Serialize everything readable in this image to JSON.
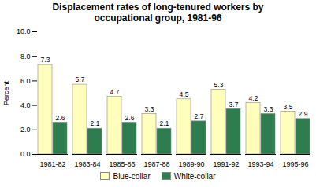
{
  "chart_data": {
    "type": "bar",
    "title": "Displacement rates of long-tenured workers by\noccupational group, 1981-96",
    "ylabel": "Percent",
    "categories": [
      "1981-82",
      "1983-84",
      "1985-86",
      "1987-88",
      "1989-90",
      "1991-92",
      "1993-94",
      "1995-96"
    ],
    "series": [
      {
        "name": "Blue-collar",
        "color": "#ffffbb",
        "values": [
          7.3,
          5.7,
          4.7,
          3.3,
          4.5,
          5.3,
          4.2,
          3.5
        ]
      },
      {
        "name": "White-collar",
        "color": "#2e7d4f",
        "values": [
          2.6,
          2.1,
          2.6,
          2.1,
          2.7,
          3.7,
          3.3,
          2.9
        ]
      }
    ],
    "ylim": [
      0.0,
      10.0
    ],
    "yticks": [
      {
        "value": 0,
        "label": "0.0"
      },
      {
        "value": 2,
        "label": "2.0"
      },
      {
        "value": 4,
        "label": "4.0"
      },
      {
        "value": 6,
        "label": "6.0"
      },
      {
        "value": 8,
        "label": "8.0"
      },
      {
        "value": 10,
        "label": "10.0"
      }
    ],
    "data_labels": true,
    "legend": "bottom",
    "grid": false
  }
}
